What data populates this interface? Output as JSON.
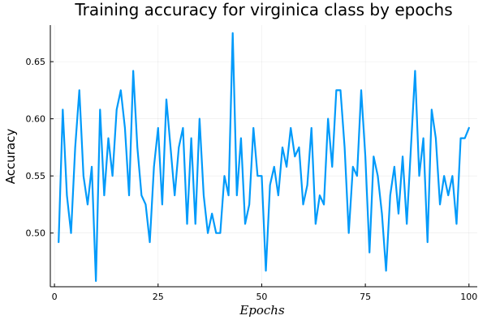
{
  "chart_data": {
    "type": "line",
    "title": "Training accuracy for virginica class by epochs",
    "xlabel": "Epochs",
    "ylabel": "Accuracy",
    "xlim": [
      -1,
      102
    ],
    "ylim": [
      0.453,
      0.682
    ],
    "xticks": [
      0,
      25,
      50,
      75,
      100
    ],
    "yticks": [
      0.5,
      0.55,
      0.6,
      0.65
    ],
    "xtick_labels": [
      "0",
      "25",
      "50",
      "75",
      "100"
    ],
    "ytick_labels": [
      "0.50",
      "0.55",
      "0.60",
      "0.65"
    ],
    "grid": true,
    "legend": "none",
    "series": [
      {
        "color": "#009AFA",
        "x": [
          1,
          2,
          3,
          4,
          5,
          6,
          7,
          8,
          9,
          10,
          11,
          12,
          13,
          14,
          15,
          16,
          17,
          18,
          19,
          20,
          21,
          22,
          23,
          24,
          25,
          26,
          27,
          28,
          29,
          30,
          31,
          32,
          33,
          34,
          35,
          36,
          37,
          38,
          39,
          40,
          41,
          42,
          43,
          44,
          45,
          46,
          47,
          48,
          49,
          50,
          51,
          52,
          53,
          54,
          55,
          56,
          57,
          58,
          59,
          60,
          61,
          62,
          63,
          64,
          65,
          66,
          67,
          68,
          69,
          70,
          71,
          72,
          73,
          74,
          75,
          76,
          77,
          78,
          79,
          80,
          81,
          82,
          83,
          84,
          85,
          86,
          87,
          88,
          89,
          90,
          91,
          92,
          93,
          94,
          95,
          96,
          97,
          98,
          99,
          100
        ],
        "values": [
          0.492,
          0.608,
          0.533,
          0.5,
          0.575,
          0.625,
          0.55,
          0.525,
          0.558,
          0.458,
          0.608,
          0.533,
          0.583,
          0.55,
          0.608,
          0.625,
          0.592,
          0.533,
          0.642,
          0.575,
          0.533,
          0.525,
          0.492,
          0.558,
          0.592,
          0.525,
          0.617,
          0.575,
          0.533,
          0.575,
          0.592,
          0.508,
          0.583,
          0.508,
          0.6,
          0.533,
          0.5,
          0.517,
          0.5,
          0.5,
          0.55,
          0.533,
          0.675,
          0.533,
          0.583,
          0.508,
          0.525,
          0.592,
          0.55,
          0.55,
          0.467,
          0.542,
          0.558,
          0.533,
          0.575,
          0.558,
          0.592,
          0.567,
          0.575,
          0.525,
          0.542,
          0.592,
          0.508,
          0.533,
          0.525,
          0.6,
          0.558,
          0.625,
          0.625,
          0.575,
          0.5,
          0.558,
          0.55,
          0.625,
          0.567,
          0.483,
          0.567,
          0.55,
          0.517,
          0.467,
          0.533,
          0.558,
          0.517,
          0.567,
          0.508,
          0.575,
          0.642,
          0.55,
          0.583,
          0.492,
          0.608,
          0.583,
          0.525,
          0.55,
          0.533,
          0.55,
          0.508,
          0.583,
          0.583,
          0.592
        ]
      }
    ]
  }
}
